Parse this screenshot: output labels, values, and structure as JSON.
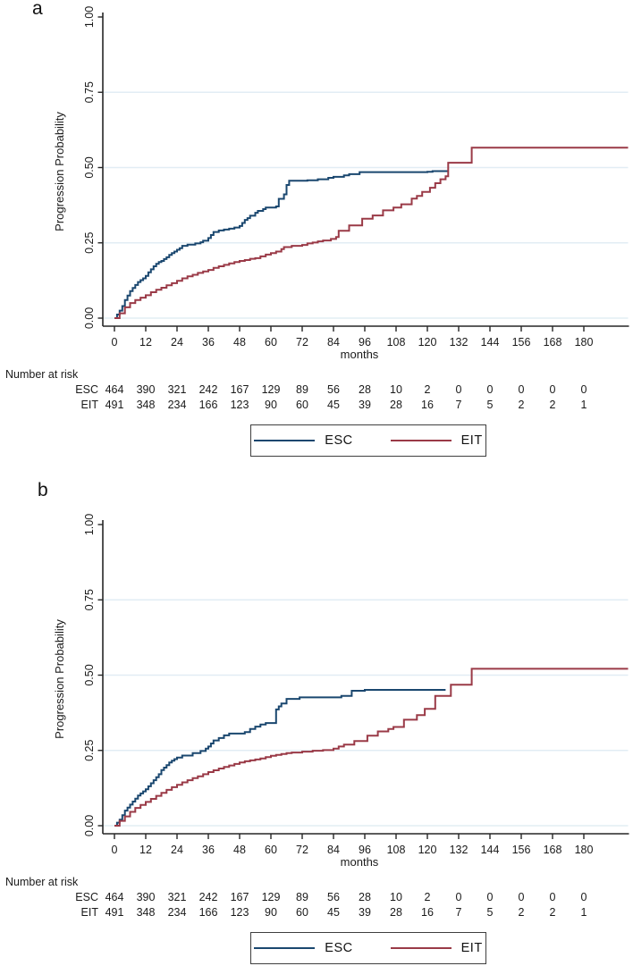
{
  "colors": {
    "esc": "#1a476f",
    "eit": "#9a3a47",
    "grid": "#e2edf4",
    "axis": "#262626",
    "text": "#1a1a1a"
  },
  "chart_data": [
    {
      "id": "a",
      "panel_label": "a",
      "type": "line",
      "subtype": "kaplan-meier-step",
      "xlabel": "months",
      "ylabel": "Progression Probability",
      "xlim": [
        0,
        197
      ],
      "ylim": [
        0,
        1
      ],
      "grid": true,
      "legend_position": "bottom-center",
      "xticks": [
        0,
        12,
        24,
        36,
        48,
        60,
        72,
        84,
        96,
        108,
        120,
        132,
        144,
        156,
        168,
        180
      ],
      "yticks": [
        {
          "v": 0,
          "label": "0.00"
        },
        {
          "v": 0.25,
          "label": "0.25"
        },
        {
          "v": 0.5,
          "label": "0.50"
        },
        {
          "v": 0.75,
          "label": "0.75"
        },
        {
          "v": 1,
          "label": "1.00"
        }
      ],
      "series": [
        {
          "name": "ESC",
          "color_key": "esc",
          "points": [
            [
              0,
              0
            ],
            [
              1,
              0.012
            ],
            [
              2,
              0.025
            ],
            [
              3,
              0.04
            ],
            [
              4,
              0.06
            ],
            [
              5,
              0.075
            ],
            [
              6,
              0.09
            ],
            [
              7,
              0.1
            ],
            [
              8,
              0.11
            ],
            [
              9,
              0.12
            ],
            [
              10,
              0.126
            ],
            [
              11,
              0.132
            ],
            [
              12,
              0.14
            ],
            [
              13,
              0.152
            ],
            [
              14,
              0.162
            ],
            [
              15,
              0.172
            ],
            [
              16,
              0.18
            ],
            [
              17,
              0.186
            ],
            [
              18,
              0.19
            ],
            [
              19,
              0.196
            ],
            [
              20,
              0.202
            ],
            [
              21,
              0.21
            ],
            [
              22,
              0.216
            ],
            [
              23,
              0.221
            ],
            [
              24,
              0.227
            ],
            [
              25,
              0.232
            ],
            [
              26,
              0.24
            ],
            [
              28,
              0.244
            ],
            [
              31,
              0.248
            ],
            [
              33,
              0.252
            ],
            [
              34,
              0.257
            ],
            [
              36,
              0.266
            ],
            [
              37,
              0.276
            ],
            [
              38,
              0.286
            ],
            [
              40,
              0.291
            ],
            [
              42,
              0.294
            ],
            [
              44,
              0.297
            ],
            [
              46,
              0.301
            ],
            [
              48,
              0.306
            ],
            [
              49,
              0.316
            ],
            [
              50,
              0.326
            ],
            [
              51,
              0.332
            ],
            [
              52,
              0.34
            ],
            [
              54,
              0.35
            ],
            [
              55,
              0.356
            ],
            [
              57,
              0.362
            ],
            [
              58,
              0.367
            ],
            [
              62,
              0.371
            ],
            [
              63,
              0.396
            ],
            [
              65,
              0.411
            ],
            [
              66,
              0.442
            ],
            [
              67,
              0.456
            ],
            [
              74,
              0.458
            ],
            [
              78,
              0.461
            ],
            [
              82,
              0.466
            ],
            [
              84,
              0.469
            ],
            [
              88,
              0.474
            ],
            [
              90,
              0.478
            ],
            [
              94,
              0.485
            ],
            [
              120,
              0.486
            ],
            [
              122,
              0.488
            ],
            [
              128,
              0.488
            ]
          ]
        },
        {
          "name": "EIT",
          "color_key": "eit",
          "points": [
            [
              0,
              0
            ],
            [
              2,
              0.016
            ],
            [
              4,
              0.036
            ],
            [
              6,
              0.05
            ],
            [
              8,
              0.06
            ],
            [
              10,
              0.068
            ],
            [
              12,
              0.076
            ],
            [
              14,
              0.086
            ],
            [
              16,
              0.094
            ],
            [
              18,
              0.101
            ],
            [
              20,
              0.109
            ],
            [
              22,
              0.116
            ],
            [
              24,
              0.124
            ],
            [
              26,
              0.132
            ],
            [
              28,
              0.139
            ],
            [
              30,
              0.144
            ],
            [
              32,
              0.15
            ],
            [
              34,
              0.155
            ],
            [
              36,
              0.16
            ],
            [
              38,
              0.167
            ],
            [
              40,
              0.172
            ],
            [
              42,
              0.177
            ],
            [
              44,
              0.182
            ],
            [
              46,
              0.186
            ],
            [
              48,
              0.19
            ],
            [
              50,
              0.193
            ],
            [
              52,
              0.197
            ],
            [
              54,
              0.199
            ],
            [
              56,
              0.205
            ],
            [
              58,
              0.211
            ],
            [
              60,
              0.216
            ],
            [
              62,
              0.221
            ],
            [
              64,
              0.229
            ],
            [
              65,
              0.236
            ],
            [
              68,
              0.24
            ],
            [
              72,
              0.243
            ],
            [
              74,
              0.248
            ],
            [
              76,
              0.251
            ],
            [
              78,
              0.255
            ],
            [
              80,
              0.258
            ],
            [
              83,
              0.263
            ],
            [
              85,
              0.269
            ],
            [
              86,
              0.29
            ],
            [
              90,
              0.308
            ],
            [
              95,
              0.33
            ],
            [
              99,
              0.341
            ],
            [
              103,
              0.358
            ],
            [
              107,
              0.367
            ],
            [
              110,
              0.378
            ],
            [
              114,
              0.397
            ],
            [
              116,
              0.406
            ],
            [
              118,
              0.419
            ],
            [
              121,
              0.433
            ],
            [
              123,
              0.448
            ],
            [
              125,
              0.461
            ],
            [
              127,
              0.471
            ],
            [
              128,
              0.516
            ],
            [
              137,
              0.566
            ],
            [
              197,
              0.566
            ]
          ]
        }
      ],
      "number_at_risk": {
        "title": "Number at risk",
        "times": [
          0,
          12,
          24,
          36,
          48,
          60,
          72,
          84,
          96,
          108,
          120,
          132,
          144,
          156,
          168,
          180
        ],
        "rows": [
          {
            "label": "ESC",
            "values": [
              464,
              390,
              321,
              242,
              167,
              129,
              89,
              56,
              28,
              10,
              2,
              0,
              0,
              0,
              0,
              0
            ]
          },
          {
            "label": "EIT",
            "values": [
              491,
              348,
              234,
              166,
              123,
              90,
              60,
              45,
              39,
              28,
              16,
              7,
              5,
              2,
              2,
              1
            ]
          }
        ]
      },
      "legend": [
        {
          "label": "ESC",
          "color_key": "esc"
        },
        {
          "label": "EIT",
          "color_key": "eit"
        }
      ]
    },
    {
      "id": "b",
      "panel_label": "b",
      "type": "line",
      "subtype": "kaplan-meier-step",
      "xlabel": "months",
      "ylabel": "Progression Probability",
      "xlim": [
        0,
        197
      ],
      "ylim": [
        0,
        1
      ],
      "grid": true,
      "legend_position": "bottom-center",
      "xticks": [
        0,
        12,
        24,
        36,
        48,
        60,
        72,
        84,
        96,
        108,
        120,
        132,
        144,
        156,
        168,
        180
      ],
      "yticks": [
        {
          "v": 0,
          "label": "0.00"
        },
        {
          "v": 0.25,
          "label": "0.25"
        },
        {
          "v": 0.5,
          "label": "0.50"
        },
        {
          "v": 0.75,
          "label": "0.75"
        },
        {
          "v": 1,
          "label": "1.00"
        }
      ],
      "series": [
        {
          "name": "ESC",
          "color_key": "esc",
          "points": [
            [
              0,
              0
            ],
            [
              1,
              0.01
            ],
            [
              2,
              0.02
            ],
            [
              3,
              0.035
            ],
            [
              4,
              0.05
            ],
            [
              5,
              0.06
            ],
            [
              6,
              0.07
            ],
            [
              7,
              0.08
            ],
            [
              8,
              0.09
            ],
            [
              9,
              0.1
            ],
            [
              10,
              0.107
            ],
            [
              11,
              0.114
            ],
            [
              12,
              0.121
            ],
            [
              13,
              0.131
            ],
            [
              14,
              0.141
            ],
            [
              15,
              0.151
            ],
            [
              16,
              0.161
            ],
            [
              17,
              0.171
            ],
            [
              18,
              0.185
            ],
            [
              19,
              0.193
            ],
            [
              20,
              0.201
            ],
            [
              21,
              0.21
            ],
            [
              22,
              0.216
            ],
            [
              23,
              0.221
            ],
            [
              24,
              0.226
            ],
            [
              26,
              0.233
            ],
            [
              30,
              0.241
            ],
            [
              33,
              0.248
            ],
            [
              35,
              0.256
            ],
            [
              36,
              0.263
            ],
            [
              37,
              0.273
            ],
            [
              38,
              0.283
            ],
            [
              40,
              0.291
            ],
            [
              42,
              0.3
            ],
            [
              44,
              0.306
            ],
            [
              50,
              0.311
            ],
            [
              52,
              0.321
            ],
            [
              54,
              0.329
            ],
            [
              56,
              0.336
            ],
            [
              58,
              0.341
            ],
            [
              62,
              0.386
            ],
            [
              63,
              0.396
            ],
            [
              64,
              0.406
            ],
            [
              66,
              0.421
            ],
            [
              71,
              0.426
            ],
            [
              87,
              0.431
            ],
            [
              91,
              0.448
            ],
            [
              96,
              0.451
            ],
            [
              127,
              0.451
            ]
          ]
        },
        {
          "name": "EIT",
          "color_key": "eit",
          "points": [
            [
              0,
              0
            ],
            [
              2,
              0.016
            ],
            [
              4,
              0.031
            ],
            [
              6,
              0.046
            ],
            [
              8,
              0.059
            ],
            [
              10,
              0.069
            ],
            [
              12,
              0.079
            ],
            [
              14,
              0.089
            ],
            [
              16,
              0.099
            ],
            [
              18,
              0.109
            ],
            [
              20,
              0.119
            ],
            [
              22,
              0.128
            ],
            [
              24,
              0.136
            ],
            [
              26,
              0.144
            ],
            [
              28,
              0.151
            ],
            [
              30,
              0.158
            ],
            [
              32,
              0.164
            ],
            [
              34,
              0.171
            ],
            [
              36,
              0.178
            ],
            [
              38,
              0.184
            ],
            [
              40,
              0.19
            ],
            [
              42,
              0.195
            ],
            [
              44,
              0.2
            ],
            [
              46,
              0.205
            ],
            [
              48,
              0.21
            ],
            [
              50,
              0.214
            ],
            [
              52,
              0.217
            ],
            [
              54,
              0.22
            ],
            [
              56,
              0.223
            ],
            [
              58,
              0.228
            ],
            [
              60,
              0.232
            ],
            [
              62,
              0.235
            ],
            [
              64,
              0.238
            ],
            [
              66,
              0.241
            ],
            [
              68,
              0.243
            ],
            [
              72,
              0.246
            ],
            [
              76,
              0.249
            ],
            [
              80,
              0.251
            ],
            [
              84,
              0.256
            ],
            [
              86,
              0.263
            ],
            [
              88,
              0.269
            ],
            [
              92,
              0.281
            ],
            [
              97,
              0.299
            ],
            [
              101,
              0.313
            ],
            [
              105,
              0.321
            ],
            [
              107,
              0.328
            ],
            [
              111,
              0.352
            ],
            [
              116,
              0.367
            ],
            [
              119,
              0.388
            ],
            [
              123,
              0.431
            ],
            [
              129,
              0.468
            ],
            [
              137,
              0.521
            ],
            [
              197,
              0.521
            ]
          ]
        }
      ],
      "number_at_risk": {
        "title": "Number at risk",
        "times": [
          0,
          12,
          24,
          36,
          48,
          60,
          72,
          84,
          96,
          108,
          120,
          132,
          144,
          156,
          168,
          180
        ],
        "rows": [
          {
            "label": "ESC",
            "values": [
              464,
              390,
              321,
              242,
              167,
              129,
              89,
              56,
              28,
              10,
              2,
              0,
              0,
              0,
              0,
              0
            ]
          },
          {
            "label": "EIT",
            "values": [
              491,
              348,
              234,
              166,
              123,
              90,
              60,
              45,
              39,
              28,
              16,
              7,
              5,
              2,
              2,
              1
            ]
          }
        ]
      },
      "legend": [
        {
          "label": "ESC",
          "color_key": "esc"
        },
        {
          "label": "EIT",
          "color_key": "eit"
        }
      ]
    }
  ]
}
